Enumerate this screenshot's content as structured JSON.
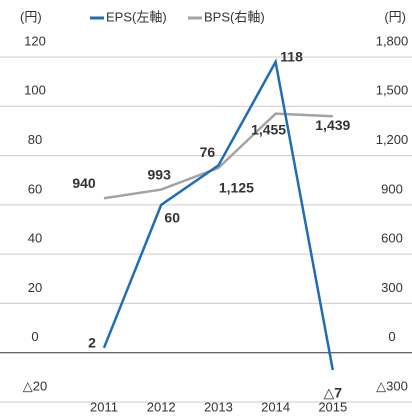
{
  "chart_data": {
    "type": "line",
    "y_unit": "(円)",
    "y2_unit": "(円)",
    "categories": [
      "2011",
      "2012",
      "2013",
      "2014",
      "2015"
    ],
    "series": [
      {
        "name": "EPS(左軸)",
        "color": "#1f6db3",
        "values": [
          2,
          60,
          76,
          118,
          -7
        ],
        "value_labels": [
          "2",
          "60",
          "76",
          "118",
          "△7"
        ]
      },
      {
        "name": "BPS(右軸)",
        "color": "#a3a3a3",
        "axis": "y2",
        "values": [
          940,
          993,
          1125,
          1455,
          1439
        ],
        "value_labels": [
          "940",
          "993",
          "1,125",
          "1,455",
          "1,439"
        ]
      }
    ],
    "ylim": [
      -20,
      120
    ],
    "yticks": [
      {
        "value": -20,
        "label": "△20"
      },
      0,
      20,
      40,
      60,
      80,
      100,
      120
    ],
    "y2lim": [
      -300,
      1800
    ],
    "y2ticks": [
      {
        "value": -300,
        "label": "△300"
      },
      0,
      300,
      600,
      900,
      {
        "value": 1200,
        "label": "1,200"
      },
      {
        "value": 1500,
        "label": "1,500"
      },
      {
        "value": 1800,
        "label": "1,800"
      }
    ],
    "grid": true
  }
}
